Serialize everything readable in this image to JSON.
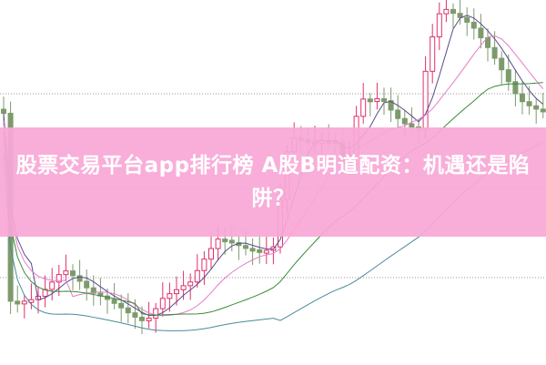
{
  "article": {
    "title": "股票交易平台app排行榜 A股B明道配资：机遇还是陷阱？"
  },
  "colors": {
    "banner": "#f7a8d6",
    "up_candle": "#e0306a",
    "down_candle": "#7d9a6c",
    "ma_short": "#5a4a8a",
    "ma_mid": "#e57cc8",
    "ma_long": "#3a8a3a",
    "ma_longest": "#4a8a9a"
  }
}
